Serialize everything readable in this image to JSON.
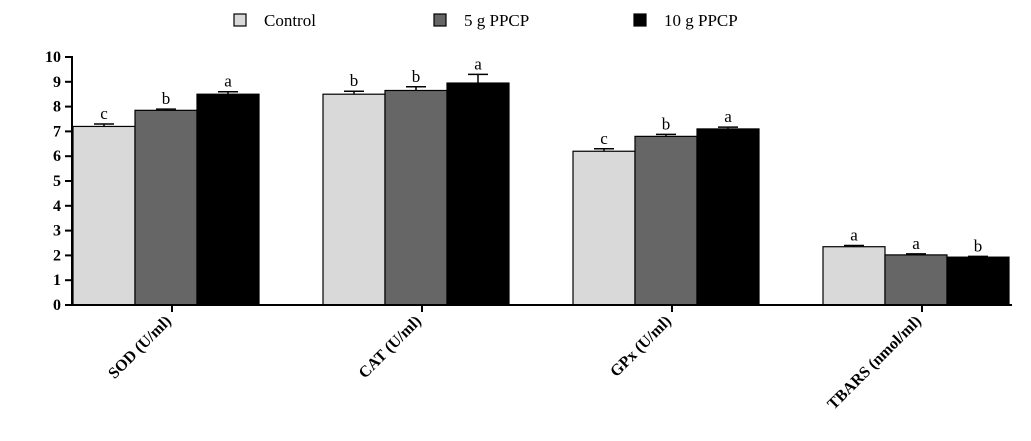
{
  "chart_data": {
    "type": "bar",
    "categories": [
      "SOD (U/ml)",
      "CAT (U/ml)",
      "GPx (U/ml)",
      "TBARS (nmol/ml)"
    ],
    "series": [
      {
        "name": "Control",
        "color": "#d9d9d9",
        "values": [
          7.2,
          8.5,
          6.2,
          2.35
        ],
        "errors": [
          0.1,
          0.12,
          0.1,
          0.05
        ],
        "labels": [
          "c",
          "b",
          "c",
          "a"
        ]
      },
      {
        "name": "5 g PPCP",
        "color": "#666666",
        "values": [
          7.85,
          8.65,
          6.8,
          2.02
        ],
        "errors": [
          0.05,
          0.15,
          0.08,
          0.04
        ],
        "labels": [
          "b",
          "b",
          "b",
          "a"
        ]
      },
      {
        "name": "10 g PPCP",
        "color": "#000000",
        "values": [
          8.5,
          8.95,
          7.1,
          1.93
        ],
        "errors": [
          0.1,
          0.35,
          0.07,
          0.03
        ],
        "labels": [
          "a",
          "a",
          "a",
          "b"
        ]
      }
    ],
    "yticks": [
      "0",
      "1",
      "2",
      "3",
      "4",
      "5",
      "6",
      "7",
      "8",
      "9",
      "10"
    ],
    "ylim": [
      0,
      10
    ],
    "legend_position": "top",
    "error_bars": true
  }
}
